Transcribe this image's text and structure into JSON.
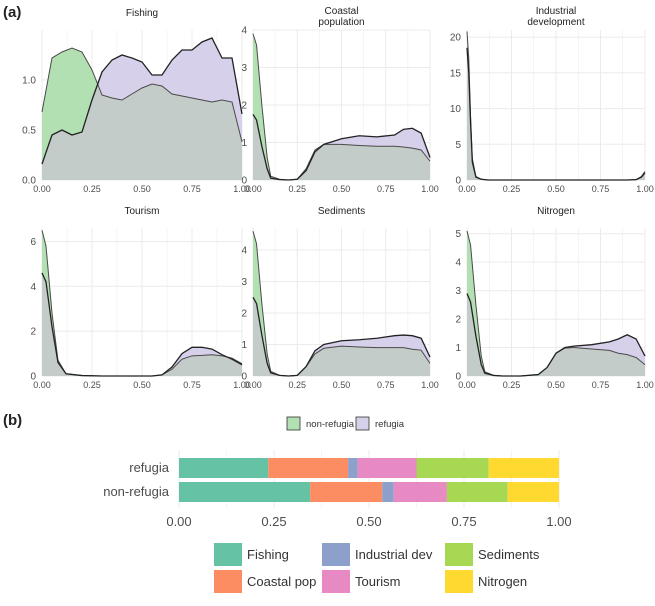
{
  "panel_labels": {
    "a": "(a)",
    "b": "(b)"
  },
  "colors": {
    "non_refugia": "#b3e0b3",
    "refugia": "#d6d0ea",
    "overlap": "#c3ccc8",
    "grid": "#ebebeb",
    "Fishing": "#66c2a5",
    "Coastal pop": "#fc8d62",
    "Industrial dev": "#8da0cb",
    "Tourism": "#e78ac3",
    "Sediments": "#a6d854",
    "Nitrogen": "#ffd92f"
  },
  "chart_data": [
    {
      "type": "area",
      "panel": "(a)",
      "x_ticks": [
        "0.00",
        "0.25",
        "0.50",
        "0.75",
        "1.00"
      ],
      "legend": {
        "position": "bottom",
        "entries": [
          "non-refugia",
          "refugia"
        ]
      },
      "facets": [
        {
          "title": [
            "Fishing"
          ],
          "ylim": [
            0,
            1.5
          ],
          "y_ticks": [
            0,
            0.5,
            1.0
          ],
          "y_tick_labels": [
            "0.0",
            "0.5",
            "1.0"
          ],
          "x": [
            0,
            0.05,
            0.1,
            0.15,
            0.2,
            0.25,
            0.3,
            0.35,
            0.4,
            0.45,
            0.5,
            0.55,
            0.6,
            0.65,
            0.7,
            0.75,
            0.8,
            0.85,
            0.9,
            0.95,
            1.0
          ],
          "series": [
            {
              "name": "non-refugia",
              "values": [
                0.68,
                1.22,
                1.28,
                1.32,
                1.28,
                1.1,
                0.85,
                0.82,
                0.8,
                0.86,
                0.92,
                0.96,
                0.94,
                0.86,
                0.84,
                0.82,
                0.8,
                0.78,
                0.8,
                0.78,
                0.38
              ]
            },
            {
              "name": "refugia",
              "values": [
                0.16,
                0.45,
                0.5,
                0.45,
                0.48,
                0.8,
                1.08,
                1.2,
                1.25,
                1.22,
                1.18,
                1.05,
                1.05,
                1.2,
                1.3,
                1.3,
                1.38,
                1.42,
                1.22,
                1.22,
                0.66
              ]
            }
          ]
        },
        {
          "title": [
            "Coastal",
            "population"
          ],
          "ylim": [
            0,
            4
          ],
          "y_ticks": [
            0,
            1,
            2,
            3,
            4
          ],
          "y_tick_labels": [
            "0",
            "1",
            "2",
            "3",
            "4"
          ],
          "x": [
            0,
            0.02,
            0.05,
            0.08,
            0.1,
            0.15,
            0.2,
            0.25,
            0.3,
            0.35,
            0.4,
            0.5,
            0.6,
            0.7,
            0.8,
            0.85,
            0.9,
            0.95,
            1.0
          ],
          "series": [
            {
              "name": "non-refugia",
              "values": [
                3.9,
                3.6,
                2.0,
                0.6,
                0.1,
                0.02,
                0.0,
                0.02,
                0.3,
                0.8,
                0.95,
                0.95,
                0.92,
                0.9,
                0.9,
                0.88,
                0.85,
                0.8,
                0.5
              ]
            },
            {
              "name": "refugia",
              "values": [
                1.75,
                1.6,
                0.9,
                0.3,
                0.05,
                0.01,
                0.0,
                0.02,
                0.25,
                0.75,
                0.95,
                1.1,
                1.18,
                1.15,
                1.2,
                1.35,
                1.38,
                1.25,
                0.6
              ]
            }
          ]
        },
        {
          "title": [
            "Industrial",
            "development"
          ],
          "ylim": [
            0,
            21
          ],
          "y_ticks": [
            0,
            5,
            10,
            15,
            20
          ],
          "y_tick_labels": [
            "0",
            "5",
            "10",
            "15",
            "20"
          ],
          "x": [
            0,
            0.01,
            0.02,
            0.03,
            0.05,
            0.08,
            0.12,
            0.2,
            0.5,
            0.9,
            0.95,
            0.98,
            1.0
          ],
          "series": [
            {
              "name": "non-refugia",
              "values": [
                20.8,
                17,
                9,
                3,
                0.5,
                0.1,
                0.0,
                0.0,
                0.0,
                0.0,
                0.05,
                0.5,
                1.2
              ]
            },
            {
              "name": "refugia",
              "values": [
                18.5,
                15,
                8,
                2.5,
                0.4,
                0.1,
                0.0,
                0.0,
                0.0,
                0.0,
                0.05,
                0.4,
                1.0
              ]
            }
          ]
        },
        {
          "title": [
            "Tourism"
          ],
          "ylim": [
            0,
            6.6
          ],
          "y_ticks": [
            0,
            2,
            4,
            6
          ],
          "y_tick_labels": [
            "0",
            "2",
            "4",
            "6"
          ],
          "x": [
            0,
            0.02,
            0.05,
            0.08,
            0.12,
            0.2,
            0.3,
            0.5,
            0.55,
            0.6,
            0.65,
            0.7,
            0.75,
            0.8,
            0.85,
            0.9,
            0.95,
            1.0
          ],
          "series": [
            {
              "name": "non-refugia",
              "values": [
                6.5,
                5.8,
                2.8,
                0.7,
                0.1,
                0.02,
                0.0,
                0.0,
                0.0,
                0.05,
                0.3,
                0.75,
                0.9,
                0.92,
                0.95,
                0.9,
                0.8,
                0.55
              ]
            },
            {
              "name": "refugia",
              "values": [
                4.6,
                4.2,
                2.2,
                0.6,
                0.1,
                0.02,
                0.0,
                0.0,
                0.0,
                0.05,
                0.4,
                1.0,
                1.28,
                1.28,
                1.2,
                0.95,
                0.75,
                0.5
              ]
            }
          ]
        },
        {
          "title": [
            "Sediments"
          ],
          "ylim": [
            0,
            4.7
          ],
          "y_ticks": [
            0,
            1,
            2,
            3,
            4
          ],
          "y_tick_labels": [
            "0",
            "1",
            "2",
            "3",
            "4"
          ],
          "x": [
            0,
            0.02,
            0.05,
            0.08,
            0.1,
            0.15,
            0.2,
            0.25,
            0.3,
            0.35,
            0.4,
            0.5,
            0.6,
            0.7,
            0.8,
            0.85,
            0.9,
            0.95,
            1.0
          ],
          "series": [
            {
              "name": "non-refugia",
              "values": [
                4.6,
                4.2,
                2.3,
                0.7,
                0.15,
                0.02,
                0.0,
                0.02,
                0.3,
                0.7,
                0.88,
                0.95,
                0.92,
                0.9,
                0.9,
                0.9,
                0.85,
                0.82,
                0.4
              ]
            },
            {
              "name": "refugia",
              "values": [
                2.5,
                2.3,
                1.3,
                0.4,
                0.1,
                0.02,
                0.0,
                0.02,
                0.3,
                0.8,
                1.0,
                1.12,
                1.15,
                1.2,
                1.28,
                1.3,
                1.28,
                1.2,
                0.6
              ]
            }
          ]
        },
        {
          "title": [
            "Nitrogen"
          ],
          "ylim": [
            0,
            5.2
          ],
          "y_ticks": [
            0,
            1,
            2,
            3,
            4,
            5
          ],
          "y_tick_labels": [
            "0",
            "1",
            "2",
            "3",
            "4",
            "5"
          ],
          "x": [
            0,
            0.02,
            0.05,
            0.08,
            0.1,
            0.15,
            0.2,
            0.3,
            0.4,
            0.45,
            0.5,
            0.55,
            0.6,
            0.7,
            0.8,
            0.85,
            0.9,
            0.95,
            1.0
          ],
          "series": [
            {
              "name": "non-refugia",
              "values": [
                5.1,
                4.6,
                2.5,
                0.7,
                0.15,
                0.02,
                0.0,
                0.0,
                0.05,
                0.3,
                0.8,
                0.98,
                1.0,
                0.95,
                0.9,
                0.8,
                0.75,
                0.65,
                0.4
              ]
            },
            {
              "name": "refugia",
              "values": [
                2.9,
                2.6,
                1.4,
                0.4,
                0.1,
                0.02,
                0.0,
                0.0,
                0.05,
                0.3,
                0.8,
                1.0,
                1.05,
                1.1,
                1.2,
                1.3,
                1.45,
                1.3,
                0.7
              ]
            }
          ]
        }
      ]
    },
    {
      "type": "bar",
      "panel": "(b)",
      "orientation": "horizontal",
      "stacked": true,
      "categories": [
        "refugia",
        "non-refugia"
      ],
      "x_ticks": [
        0,
        0.25,
        0.5,
        0.75,
        1.0
      ],
      "x_tick_labels": [
        "0.00",
        "0.25",
        "0.50",
        "0.75",
        "1.00"
      ],
      "xlim": [
        0,
        1
      ],
      "legend": {
        "position": "bottom",
        "entries": [
          "Fishing",
          "Coastal pop",
          "Industrial dev",
          "Tourism",
          "Sediments",
          "Nitrogen"
        ]
      },
      "series": [
        {
          "name": "Fishing",
          "values": [
            0.235,
            0.345
          ]
        },
        {
          "name": "Coastal pop",
          "values": [
            0.21,
            0.19
          ]
        },
        {
          "name": "Industrial dev",
          "values": [
            0.025,
            0.03
          ]
        },
        {
          "name": "Tourism",
          "values": [
            0.155,
            0.14
          ]
        },
        {
          "name": "Sediments",
          "values": [
            0.19,
            0.16
          ]
        },
        {
          "name": "Nitrogen",
          "values": [
            0.185,
            0.135
          ]
        }
      ]
    }
  ]
}
